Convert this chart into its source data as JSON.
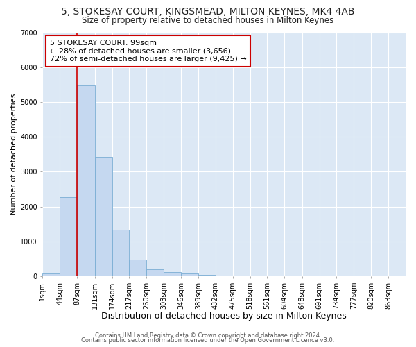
{
  "title": "5, STOKESAY COURT, KINGSMEAD, MILTON KEYNES, MK4 4AB",
  "subtitle": "Size of property relative to detached houses in Milton Keynes",
  "xlabel": "Distribution of detached houses by size in Milton Keynes",
  "ylabel": "Number of detached properties",
  "bar_color": "#c5d8f0",
  "bar_edge_color": "#7aadd4",
  "figure_bg_color": "#ffffff",
  "axes_bg_color": "#dce8f5",
  "grid_color": "#ffffff",
  "annotation_text": "5 STOKESAY COURT: 99sqm\n← 28% of detached houses are smaller (3,656)\n72% of semi-detached houses are larger (9,425) →",
  "annotation_box_color": "#ffffff",
  "annotation_box_edge_color": "#cc0000",
  "vline_x": 87,
  "vline_color": "#cc0000",
  "categories": [
    "1sqm",
    "44sqm",
    "87sqm",
    "131sqm",
    "174sqm",
    "217sqm",
    "260sqm",
    "303sqm",
    "346sqm",
    "389sqm",
    "432sqm",
    "475sqm",
    "518sqm",
    "561sqm",
    "604sqm",
    "648sqm",
    "691sqm",
    "734sqm",
    "777sqm",
    "820sqm",
    "863sqm"
  ],
  "values": [
    75,
    2280,
    5480,
    3430,
    1340,
    490,
    210,
    120,
    75,
    50,
    25,
    0,
    0,
    0,
    0,
    0,
    0,
    0,
    0,
    0,
    0
  ],
  "bin_edges": [
    1,
    44,
    87,
    131,
    174,
    217,
    260,
    303,
    346,
    389,
    432,
    475,
    518,
    561,
    604,
    648,
    691,
    734,
    777,
    820,
    863,
    906
  ],
  "ylim": [
    0,
    7000
  ],
  "yticks": [
    0,
    1000,
    2000,
    3000,
    4000,
    5000,
    6000,
    7000
  ],
  "footer_line1": "Contains HM Land Registry data © Crown copyright and database right 2024.",
  "footer_line2": "Contains public sector information licensed under the Open Government Licence v3.0.",
  "title_fontsize": 10,
  "subtitle_fontsize": 8.5,
  "xlabel_fontsize": 9,
  "ylabel_fontsize": 8,
  "tick_fontsize": 7,
  "annotation_fontsize": 8,
  "footer_fontsize": 6
}
